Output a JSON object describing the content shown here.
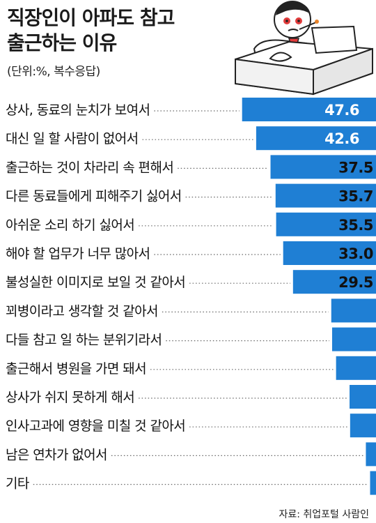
{
  "title": [
    "직장인이 아파도 참고",
    "출근하는 이유"
  ],
  "subtitle": "(단위:%, 복수응답)",
  "source": "자료: 취업포털 사람인",
  "colors": {
    "bar": "#1f7fd4",
    "text": "#111111",
    "dots": "#666666"
  },
  "chart_data": {
    "type": "bar",
    "orientation": "horizontal",
    "title": "직장인이 아파도 참고 출근하는 이유",
    "unit": "%",
    "categories": [
      "상사, 동료의 눈치가 보여서",
      "대신 일 할 사람이 없어서",
      "출근하는 것이 차라리 속 편해서",
      "다른 동료들에게 피해주기 싫어서",
      "아쉬운 소리 하기 싫어서",
      "해야 할 업무가 너무 많아서",
      "불성실한 이미지로 보일 것 같아서",
      "꾀병이라고 생각할 것 같아서",
      "다들 참고 일 하는 분위기라서",
      "출근해서 병원을 가면 돼서",
      "상사가 쉬지 못하게 해서",
      "인사고과에 영향을 미칠 것 같아서",
      "남은 연차가 없어서",
      "기타"
    ],
    "values": [
      47.6,
      42.6,
      37.5,
      35.7,
      35.5,
      33.0,
      29.5,
      15.9,
      15.6,
      14.2,
      9.4,
      9.2,
      3.6,
      2.1
    ],
    "value_labels": [
      "47.6",
      "42.6",
      "37.5",
      "35.7",
      "35.5",
      "33.0",
      "29.5",
      "15.9",
      "15.6",
      "14.2",
      "9.4",
      "9.2",
      "3.6",
      "2.1"
    ]
  }
}
